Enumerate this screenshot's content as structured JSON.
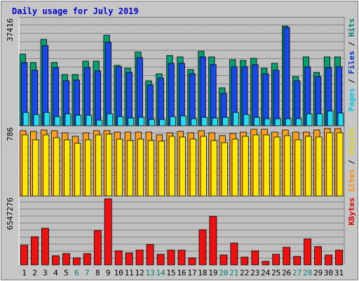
{
  "chart_data": {
    "type": "bar",
    "title": "Daily usage for July 2019",
    "categories": [
      "1",
      "2",
      "3",
      "4",
      "5",
      "6",
      "7",
      "8",
      "9",
      "10",
      "11",
      "12",
      "13",
      "14",
      "15",
      "16",
      "17",
      "18",
      "19",
      "20",
      "21",
      "22",
      "23",
      "24",
      "25",
      "26",
      "27",
      "28",
      "29",
      "30",
      "31"
    ],
    "weekend_days": [
      "6",
      "7",
      "13",
      "14",
      "20",
      "21",
      "27",
      "28"
    ],
    "panels": [
      {
        "id": "hits",
        "ymax_label": "37416",
        "ymax": 37416,
        "legend": [
          {
            "text": "Pages",
            "color": "#00c8e8"
          },
          {
            "text": " / ",
            "color": "#000000"
          },
          {
            "text": "Files",
            "color": "#0033cc"
          },
          {
            "text": " / ",
            "color": "#000000"
          },
          {
            "text": "Hits",
            "color": "#00806a"
          }
        ],
        "series": [
          {
            "name": "Hits",
            "color": "#00a070",
            "values": [
              25300,
              22300,
              30600,
              22300,
              18000,
              18000,
              22700,
              22700,
              32000,
              21300,
              20300,
              26000,
              15800,
              18400,
              24700,
              24200,
              19700,
              26200,
              24200,
              13500,
              23300,
              23000,
              23700,
              20400,
              22000,
              35300,
              17300,
              24300,
              18900,
              24200,
              24400
            ]
          },
          {
            "name": "Files",
            "color": "#1848e8",
            "values": [
              22300,
              19500,
              28200,
              20500,
              15800,
              16200,
              20500,
              19400,
              29600,
              20700,
              18800,
              24000,
              14400,
              16800,
              22000,
              22000,
              18400,
              24400,
              21600,
              11500,
              20700,
              20700,
              21600,
              18400,
              19600,
              34700,
              15800,
              20700,
              17300,
              20500,
              20800
            ]
          },
          {
            "name": "Pages",
            "color": "#22ddee",
            "values": [
              4800,
              4000,
              4800,
              3300,
              4100,
              3700,
              3800,
              2000,
              4100,
              3300,
              2700,
              3000,
              2200,
              2200,
              3100,
              3500,
              2400,
              3000,
              2800,
              3000,
              4700,
              4000,
              3000,
              2500,
              2600,
              2500,
              2600,
              4200,
              4200,
              5100,
              4500
            ]
          }
        ]
      },
      {
        "id": "visits",
        "ymax_label": "786",
        "ymax": 786,
        "legend": [
          {
            "text": "Sites",
            "color": "#ff8c00"
          },
          {
            "text": " / ",
            "color": "#000000"
          },
          {
            "text": "Visits",
            "color": "#d8d800"
          }
        ],
        "series": [
          {
            "name": "Visits",
            "color": "#ffa020",
            "values": [
              760,
              753,
              768,
              763,
              736,
              700,
              740,
              764,
              765,
              745,
              745,
              747,
              741,
              711,
              733,
              757,
              736,
              765,
              737,
              708,
              732,
              742,
              774,
              776,
              741,
              768,
              741,
              748,
              766,
              786,
              785
            ]
          },
          {
            "name": "Sites",
            "color": "#ffe800",
            "values": [
              712,
              658,
              716,
              682,
              651,
              614,
              656,
              709,
              722,
              664,
              646,
              662,
              646,
              638,
              695,
              688,
              661,
              693,
              650,
              625,
              665,
              699,
              714,
              712,
              687,
              708,
              658,
              695,
              690,
              733,
              735
            ]
          }
        ]
      },
      {
        "id": "kbytes",
        "ymax_label": "6547276",
        "ymax": 6547276,
        "legend": [
          {
            "text": "KBytes",
            "color": "#e00000"
          }
        ],
        "series": [
          {
            "name": "KBytes",
            "color": "#ee1111",
            "values": [
              1930000,
              2820000,
              3640000,
              880000,
              1120000,
              720000,
              1120000,
              3400000,
              6547276,
              1420000,
              1200000,
              1440000,
              2000000,
              1030000,
              1460000,
              1440000,
              720000,
              3460000,
              4780000,
              1000000,
              2170000,
              800000,
              1420000,
              350000,
              1030000,
              1720000,
              810000,
              2600000,
              1810000,
              1000000,
              1440000
            ]
          }
        ]
      }
    ]
  }
}
